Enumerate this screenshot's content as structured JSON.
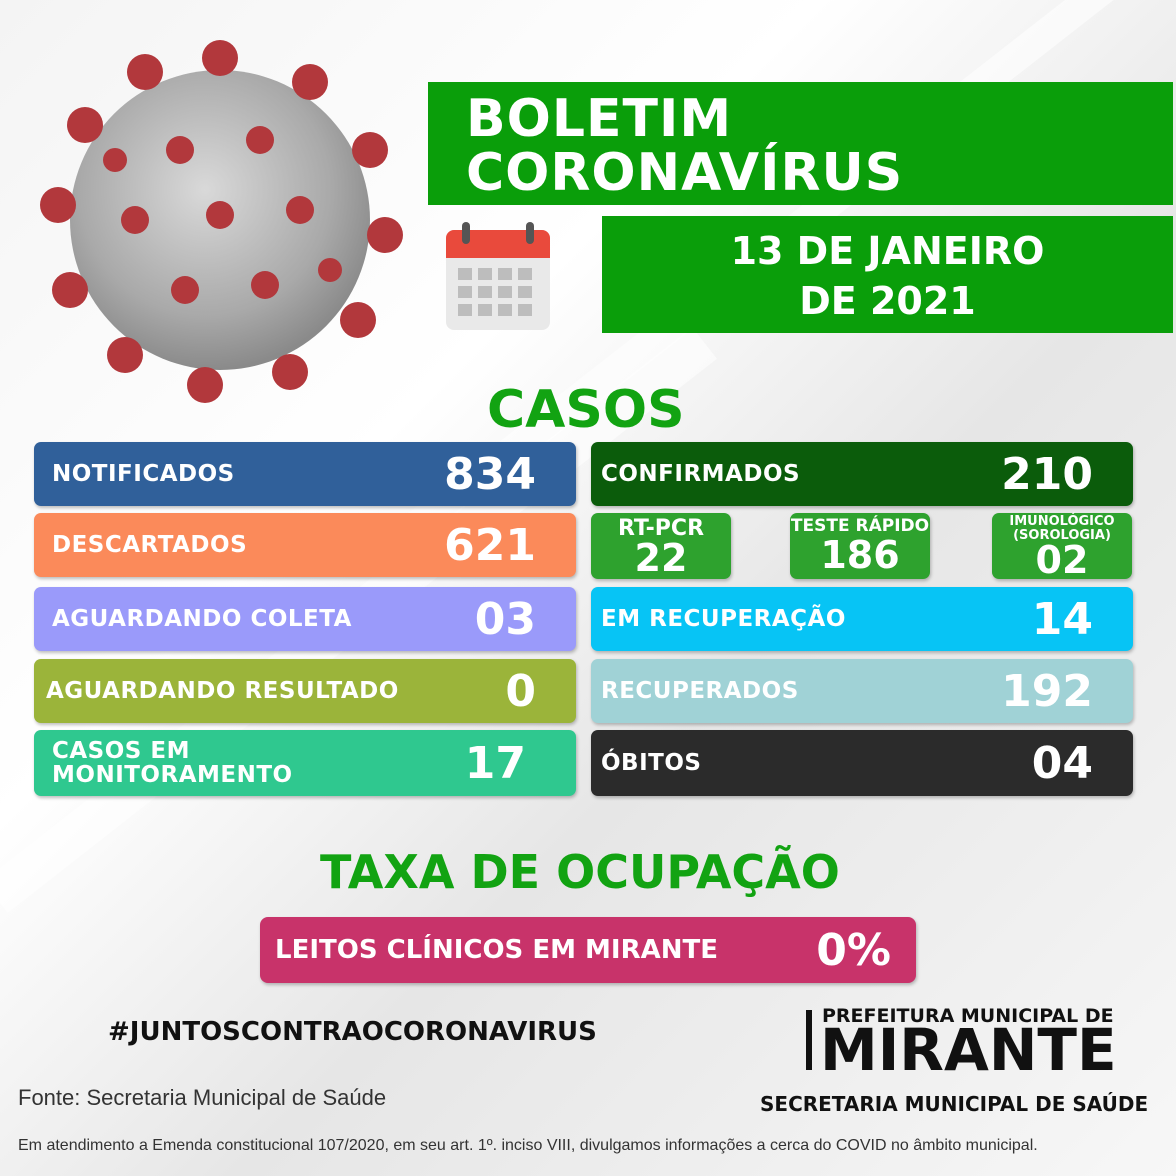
{
  "header": {
    "title_line1": "BOLETIM",
    "title_line2": "CORONAVÍRUS",
    "date_line1": "13 DE JANEIRO",
    "date_line2": "DE 2021"
  },
  "casos": {
    "title": "CASOS",
    "left": [
      {
        "label": "NOTIFICADOS",
        "value": "834",
        "color": "#30609a"
      },
      {
        "label": "DESCARTADOS",
        "value": "621",
        "color": "#fb8a5a"
      },
      {
        "label": "AGUARDANDO COLETA",
        "value": "03",
        "color": "#9a9afa"
      },
      {
        "label": "AGUARDANDO RESULTADO",
        "value": "0",
        "color": "#9bb43a"
      },
      {
        "label_line1": "CASOS EM",
        "label_line2": "MONITORAMENTO",
        "value": "17",
        "color": "#2fc88f"
      }
    ],
    "confirmados": {
      "label": "CONFIRMADOS",
      "value": "210",
      "color": "#0b5c0b"
    },
    "sub": [
      {
        "label": "RT-PCR",
        "value": "22"
      },
      {
        "label": "TESTE RÁPIDO",
        "value": "186"
      },
      {
        "label_line1": "IMUNOLÓGICO",
        "label_line2": "(SOROLOGIA)",
        "value": "02"
      }
    ],
    "right": [
      {
        "label": "EM RECUPERAÇÃO",
        "value": "14",
        "color": "#07c4f5"
      },
      {
        "label": "RECUPERADOS",
        "value": "192",
        "color": "#a0d2d6"
      },
      {
        "label": "ÓBITOS",
        "value": "04",
        "color": "#2b2b2b"
      }
    ]
  },
  "ocupacao": {
    "title": "TAXA DE OCUPAÇÃO",
    "label": "LEITOS CLÍNICOS EM MIRANTE",
    "value": "0%",
    "color": "#c8336a"
  },
  "hashtag": "#JUNTOSCONTRAOCORONAVIRUS",
  "fonte": "Fonte: Secretaria Municipal de Saúde",
  "prefeitura": {
    "top": "PREFEITURA MUNICIPAL DE",
    "name": "MIRANTE",
    "secretaria": "SECRETARIA MUNICIPAL DE SAÚDE"
  },
  "footer": "Em atendimento a Emenda constitucional 107/2020, em seu art. 1º. inciso VIII, divulgamos informações a cerca do COVID no âmbito municipal.",
  "icons": [
    "virus-icon",
    "calendar-icon"
  ]
}
